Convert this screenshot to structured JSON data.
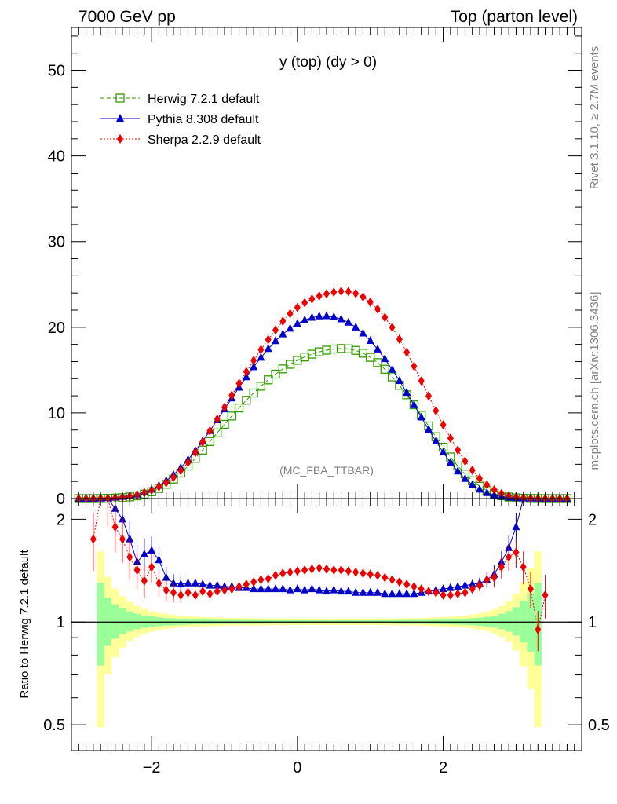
{
  "header": {
    "left": "7000 GeV pp",
    "right": "Top (parton level)"
  },
  "side": {
    "rivet": "Rivet 3.1.10, ≥ 2.7M events",
    "mcplots": "mcplots.cern.ch [arXiv:1306.3436]"
  },
  "chart_data": {
    "type": "line",
    "title": "y (top) (dy > 0)",
    "watermark": "(MC_FBA_TTBAR)",
    "xlim": [
      -3.1,
      3.9
    ],
    "xticks": [
      "−2",
      "0",
      "2"
    ],
    "main": {
      "ylim": [
        0,
        55
      ],
      "yticks": [
        "0",
        "10",
        "20",
        "30",
        "40",
        "50"
      ]
    },
    "ratio": {
      "ylabel": "Ratio to Herwig 7.2.1 default",
      "yticks": [
        "0.5",
        "1",
        "2"
      ],
      "ylim": [
        0.42,
        2.3
      ],
      "log": true
    },
    "legend_position": "top-left",
    "x": [
      -3.0,
      -2.9,
      -2.8,
      -2.7,
      -2.6,
      -2.5,
      -2.4,
      -2.3,
      -2.2,
      -2.1,
      -2.0,
      -1.9,
      -1.8,
      -1.7,
      -1.6,
      -1.5,
      -1.4,
      -1.3,
      -1.2,
      -1.1,
      -1.0,
      -0.9,
      -0.8,
      -0.7,
      -0.6,
      -0.5,
      -0.4,
      -0.3,
      -0.2,
      -0.1,
      0.0,
      0.1,
      0.2,
      0.3,
      0.4,
      0.5,
      0.6,
      0.7,
      0.8,
      0.9,
      1.0,
      1.1,
      1.2,
      1.3,
      1.4,
      1.5,
      1.6,
      1.7,
      1.8,
      1.9,
      2.0,
      2.1,
      2.2,
      2.3,
      2.4,
      2.5,
      2.6,
      2.7,
      2.8,
      2.9,
      3.0,
      3.1,
      3.2,
      3.3,
      3.4,
      3.5,
      3.6,
      3.7
    ],
    "series": [
      {
        "name": "Herwig 7.2.1 default",
        "color": "#339900",
        "marker": "open-square",
        "line": "dashed",
        "values": [
          0,
          0,
          0,
          0.01,
          0.03,
          0.06,
          0.11,
          0.19,
          0.32,
          0.52,
          0.8,
          1.18,
          1.67,
          2.27,
          2.98,
          3.8,
          4.7,
          5.66,
          6.66,
          7.67,
          8.67,
          9.64,
          10.58,
          11.48,
          12.33,
          13.12,
          13.86,
          14.53,
          15.14,
          15.68,
          16.14,
          16.53,
          16.86,
          17.13,
          17.33,
          17.46,
          17.52,
          17.48,
          17.3,
          16.97,
          16.49,
          15.87,
          15.1,
          14.21,
          13.22,
          12.12,
          10.95,
          9.73,
          8.48,
          7.22,
          6.0,
          4.86,
          3.8,
          2.87,
          2.08,
          1.44,
          0.94,
          0.58,
          0.33,
          0.18,
          0.09,
          0.04,
          0.02,
          0.01,
          0,
          0,
          0,
          0
        ]
      },
      {
        "name": "Pythia 8.308 default",
        "color": "#0000cc",
        "marker": "filled-triangle",
        "line": "solid",
        "values": [
          0,
          0,
          0,
          0.02,
          0.07,
          0.13,
          0.22,
          0.33,
          0.48,
          0.73,
          1.07,
          1.51,
          2.08,
          2.77,
          3.6,
          4.54,
          5.59,
          6.72,
          7.92,
          9.17,
          10.44,
          11.71,
          12.97,
          14.19,
          15.36,
          16.46,
          17.48,
          18.4,
          19.19,
          19.86,
          20.41,
          20.83,
          21.13,
          21.29,
          21.31,
          21.2,
          20.95,
          20.56,
          20.0,
          19.3,
          18.43,
          17.43,
          16.3,
          15.07,
          13.75,
          12.36,
          10.93,
          9.49,
          8.07,
          6.69,
          5.4,
          4.22,
          3.18,
          2.31,
          1.6,
          1.06,
          0.67,
          0.41,
          0.24,
          0.13,
          0.07,
          0.04,
          0.02,
          0.01,
          0,
          0,
          0,
          0
        ]
      },
      {
        "name": "Sherpa 2.2.9 default",
        "color": "#ee0000",
        "marker": "filled-diamond",
        "line": "dotted",
        "values": [
          0,
          0,
          0,
          0.03,
          0.05,
          0.09,
          0.16,
          0.27,
          0.43,
          0.66,
          0.98,
          1.38,
          1.86,
          2.48,
          3.26,
          4.22,
          5.37,
          6.61,
          7.91,
          9.27,
          10.66,
          12.06,
          13.45,
          14.8,
          16.12,
          17.38,
          18.56,
          19.67,
          20.7,
          21.59,
          22.31,
          22.86,
          23.3,
          23.65,
          23.9,
          24.1,
          24.2,
          24.17,
          23.95,
          23.54,
          22.93,
          22.13,
          21.15,
          19.98,
          18.61,
          17.09,
          15.45,
          13.74,
          11.99,
          10.26,
          8.6,
          7.05,
          5.66,
          4.38,
          3.3,
          2.35,
          1.6,
          1.02,
          0.6,
          0.33,
          0.17,
          0.08,
          0.04,
          0.02,
          0.01,
          0,
          0,
          0
        ]
      }
    ],
    "ratio_series": [
      {
        "name": "Pythia 8.308 default",
        "values": [
          null,
          null,
          null,
          null,
          2.5,
          2.15,
          2.0,
          1.75,
          1.5,
          1.58,
          1.62,
          1.52,
          1.35,
          1.3,
          1.29,
          1.3,
          1.3,
          1.29,
          1.28,
          1.28,
          1.27,
          1.27,
          1.26,
          1.26,
          1.25,
          1.25,
          1.25,
          1.25,
          1.25,
          1.24,
          1.25,
          1.24,
          1.25,
          1.24,
          1.23,
          1.24,
          1.23,
          1.23,
          1.22,
          1.22,
          1.22,
          1.22,
          1.21,
          1.21,
          1.21,
          1.21,
          1.21,
          1.22,
          1.23,
          1.24,
          1.25,
          1.26,
          1.27,
          1.28,
          1.29,
          1.3,
          1.33,
          1.38,
          1.5,
          1.65,
          1.9,
          2.5,
          null,
          null,
          null,
          null,
          null,
          null
        ]
      },
      {
        "name": "Sherpa 2.2.9 default",
        "values": [
          null,
          null,
          1.75,
          2.5,
          2.3,
          1.9,
          1.75,
          1.55,
          1.42,
          1.32,
          1.45,
          1.3,
          1.24,
          1.22,
          1.2,
          1.22,
          1.2,
          1.23,
          1.21,
          1.23,
          1.24,
          1.25,
          1.27,
          1.29,
          1.31,
          1.33,
          1.34,
          1.37,
          1.39,
          1.4,
          1.41,
          1.42,
          1.43,
          1.44,
          1.43,
          1.42,
          1.42,
          1.41,
          1.4,
          1.39,
          1.38,
          1.37,
          1.35,
          1.33,
          1.31,
          1.29,
          1.27,
          1.25,
          1.23,
          1.22,
          1.2,
          1.2,
          1.21,
          1.22,
          1.25,
          1.28,
          1.33,
          1.35,
          1.45,
          1.55,
          1.6,
          1.45,
          1.25,
          0.95,
          1.2,
          null,
          null,
          null
        ]
      }
    ]
  }
}
